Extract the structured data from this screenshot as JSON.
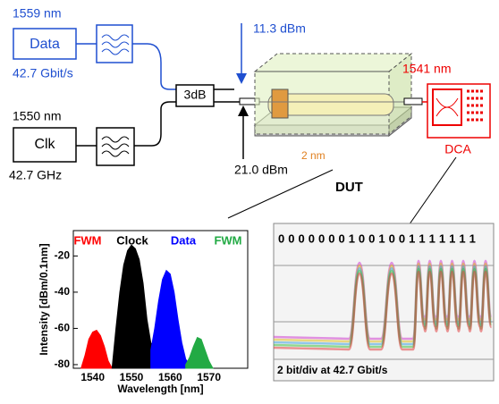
{
  "diagram": {
    "data_source": {
      "wavelength": "1559 nm",
      "label": "Data",
      "rate": "42.7 Gbit/s"
    },
    "clock_source": {
      "wavelength": "1550 nm",
      "label": "Clk",
      "rate": "42.7 GHz"
    },
    "coupler": "3dB",
    "signal_power": "11.3 dBm",
    "total_power": "21.0 dBm",
    "waveguide_size": "2 nm",
    "dut": "DUT",
    "analyzer": {
      "wavelength": "1541 nm",
      "label": "DCA"
    }
  },
  "chart_data": {
    "type": "area",
    "ylabel": "Intensity [dBm/0.1nm]",
    "xlabel": "Wavelength [nm]",
    "xlim": [
      1535,
      1580
    ],
    "xticks": [
      1540,
      1550,
      1560,
      1570
    ],
    "ylim": [
      -82,
      -6
    ],
    "yticks": [
      -20,
      -40,
      -60,
      -80
    ],
    "series": [
      {
        "name": "FWM",
        "color": "#ff0000",
        "x": [
          1537,
          1538,
          1539,
          1540,
          1541,
          1542,
          1543,
          1544,
          1545
        ],
        "values": [
          -82,
          -75,
          -66,
          -62,
          -61,
          -64,
          -70,
          -78,
          -82
        ]
      },
      {
        "name": "Clock",
        "color": "#000000",
        "x": [
          1545,
          1546,
          1547,
          1548,
          1549,
          1550,
          1551,
          1552,
          1553,
          1554,
          1555,
          1556
        ],
        "values": [
          -82,
          -60,
          -40,
          -25,
          -17,
          -14,
          -16,
          -22,
          -35,
          -55,
          -68,
          -72
        ]
      },
      {
        "name": "Data",
        "color": "#0000ff",
        "x": [
          1555,
          1556,
          1557,
          1558,
          1559,
          1560,
          1561,
          1562,
          1563,
          1564,
          1565
        ],
        "values": [
          -72,
          -60,
          -45,
          -33,
          -28,
          -30,
          -40,
          -55,
          -68,
          -77,
          -80
        ]
      },
      {
        "name": "FWM",
        "color": "#22aa44",
        "x": [
          1564,
          1565,
          1566,
          1567,
          1568,
          1569,
          1570,
          1571
        ],
        "values": [
          -80,
          -76,
          -70,
          -65,
          -66,
          -72,
          -78,
          -82
        ]
      }
    ]
  },
  "eye_diagram": {
    "bit_pattern": "0 0 0 0 0 0 0 1 0 0 1 0 0 1 1 1 1 1 1 1",
    "caption": "2 bit/div at 42.7 Gbit/s"
  }
}
